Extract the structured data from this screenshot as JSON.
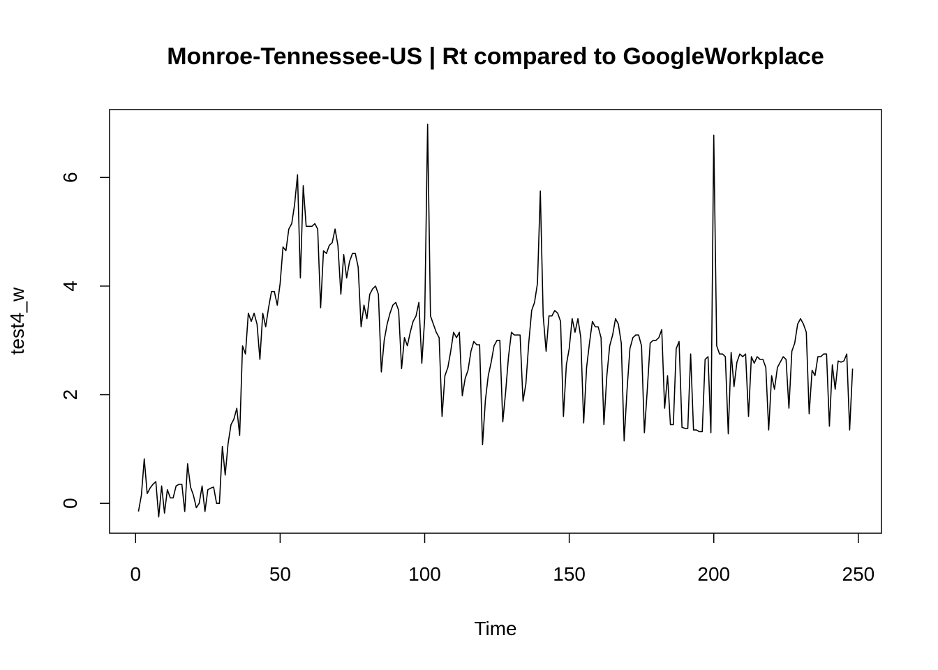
{
  "chart_data": {
    "type": "line",
    "title": "Monroe-Tennessee-US | Rt compared to GoogleWorkplace",
    "xlabel": "Time",
    "ylabel": "test4_w",
    "xlim": [
      -9,
      258
    ],
    "ylim": [
      -0.55,
      7.25
    ],
    "xticks": [
      0,
      50,
      100,
      150,
      200,
      250
    ],
    "yticks": [
      0,
      2,
      4,
      6
    ],
    "grid": false,
    "legend": "none",
    "series": [
      {
        "color": "#000000",
        "x": [
          1,
          2,
          3,
          4,
          5,
          6,
          7,
          8,
          9,
          10,
          11,
          12,
          13,
          14,
          15,
          16,
          17,
          18,
          19,
          20,
          21,
          22,
          23,
          24,
          25,
          26,
          27,
          28,
          29,
          30,
          31,
          32,
          33,
          34,
          35,
          36,
          37,
          38,
          39,
          40,
          41,
          42,
          43,
          44,
          45,
          46,
          47,
          48,
          49,
          50,
          51,
          52,
          53,
          54,
          55,
          56,
          57,
          58,
          59,
          60,
          61,
          62,
          63,
          64,
          65,
          66,
          67,
          68,
          69,
          70,
          71,
          72,
          73,
          74,
          75,
          76,
          77,
          78,
          79,
          80,
          81,
          82,
          83,
          84,
          85,
          86,
          87,
          88,
          89,
          90,
          91,
          92,
          93,
          94,
          95,
          96,
          97,
          98,
          99,
          100,
          101,
          102,
          103,
          104,
          105,
          106,
          107,
          108,
          109,
          110,
          111,
          112,
          113,
          114,
          115,
          116,
          117,
          118,
          119,
          120,
          121,
          122,
          123,
          124,
          125,
          126,
          127,
          128,
          129,
          130,
          131,
          132,
          133,
          134,
          135,
          136,
          137,
          138,
          139,
          140,
          141,
          142,
          143,
          144,
          145,
          146,
          147,
          148,
          149,
          150,
          151,
          152,
          153,
          154,
          155,
          156,
          157,
          158,
          159,
          160,
          161,
          162,
          163,
          164,
          165,
          166,
          167,
          168,
          169,
          170,
          171,
          172,
          173,
          174,
          175,
          176,
          177,
          178,
          179,
          180,
          181,
          182,
          183,
          184,
          185,
          186,
          187,
          188,
          189,
          190,
          191,
          192,
          193,
          194,
          195,
          196,
          197,
          198,
          199,
          200,
          201,
          202,
          203,
          204,
          205,
          206,
          207,
          208,
          209,
          210,
          211,
          212,
          213,
          214,
          215,
          216,
          217,
          218,
          219,
          220,
          221,
          222,
          223,
          224,
          225,
          226,
          227,
          228,
          229,
          230,
          231,
          232,
          233,
          234,
          235,
          236,
          237,
          238,
          239,
          240,
          241,
          242,
          243,
          244,
          245,
          246,
          247,
          248
        ],
        "y": [
          -0.15,
          0.15,
          0.82,
          0.18,
          0.28,
          0.35,
          0.4,
          -0.25,
          0.32,
          -0.18,
          0.25,
          0.1,
          0.1,
          0.32,
          0.35,
          0.35,
          -0.15,
          0.73,
          0.3,
          0.15,
          -0.08,
          0.0,
          0.32,
          -0.15,
          0.25,
          0.28,
          0.3,
          0.0,
          0.0,
          1.05,
          0.52,
          1.1,
          1.45,
          1.55,
          1.75,
          1.25,
          2.9,
          2.75,
          3.5,
          3.35,
          3.5,
          3.3,
          2.65,
          3.5,
          3.25,
          3.6,
          3.9,
          3.9,
          3.65,
          4.05,
          4.72,
          4.65,
          5.05,
          5.15,
          5.5,
          6.05,
          4.15,
          5.85,
          5.1,
          5.1,
          5.1,
          5.15,
          5.05,
          3.6,
          4.65,
          4.6,
          4.75,
          4.8,
          5.05,
          4.75,
          3.85,
          4.58,
          4.15,
          4.45,
          4.6,
          4.6,
          4.35,
          3.25,
          3.65,
          3.4,
          3.85,
          3.95,
          4.0,
          3.85,
          2.42,
          3.0,
          3.3,
          3.5,
          3.65,
          3.7,
          3.55,
          2.48,
          3.05,
          2.9,
          3.15,
          3.35,
          3.45,
          3.7,
          2.58,
          3.4,
          6.98,
          3.45,
          3.3,
          3.15,
          3.05,
          1.6,
          2.35,
          2.5,
          2.8,
          3.15,
          3.05,
          3.15,
          1.98,
          2.3,
          2.45,
          2.8,
          2.98,
          2.92,
          2.92,
          1.08,
          1.9,
          2.35,
          2.6,
          2.9,
          3.0,
          3.0,
          1.5,
          2.05,
          2.7,
          3.15,
          3.1,
          3.1,
          3.1,
          1.88,
          2.2,
          2.95,
          3.55,
          3.7,
          4.05,
          5.75,
          3.45,
          2.8,
          3.45,
          3.45,
          3.55,
          3.5,
          3.35,
          1.6,
          2.55,
          2.85,
          3.4,
          3.15,
          3.4,
          3.05,
          1.48,
          2.5,
          2.95,
          3.35,
          3.25,
          3.25,
          3.05,
          1.45,
          2.35,
          2.9,
          3.1,
          3.4,
          3.3,
          2.95,
          1.15,
          2.1,
          2.85,
          3.05,
          3.1,
          3.1,
          2.9,
          1.3,
          2.1,
          2.95,
          3.0,
          3.0,
          3.05,
          3.2,
          1.75,
          2.35,
          1.45,
          1.45,
          2.85,
          2.98,
          1.4,
          1.38,
          1.38,
          2.75,
          1.35,
          1.35,
          1.32,
          1.32,
          2.65,
          2.7,
          1.3,
          6.78,
          2.9,
          2.75,
          2.75,
          2.7,
          1.28,
          2.78,
          2.15,
          2.6,
          2.75,
          2.7,
          2.75,
          1.6,
          2.7,
          2.58,
          2.7,
          2.65,
          2.65,
          2.5,
          1.35,
          2.35,
          2.1,
          2.5,
          2.6,
          2.7,
          2.65,
          1.75,
          2.8,
          2.95,
          3.3,
          3.4,
          3.3,
          3.15,
          1.65,
          2.45,
          2.35,
          2.7,
          2.7,
          2.75,
          2.75,
          1.42,
          2.55,
          2.1,
          2.62,
          2.6,
          2.62,
          2.75,
          1.35,
          2.48
        ]
      }
    ]
  }
}
